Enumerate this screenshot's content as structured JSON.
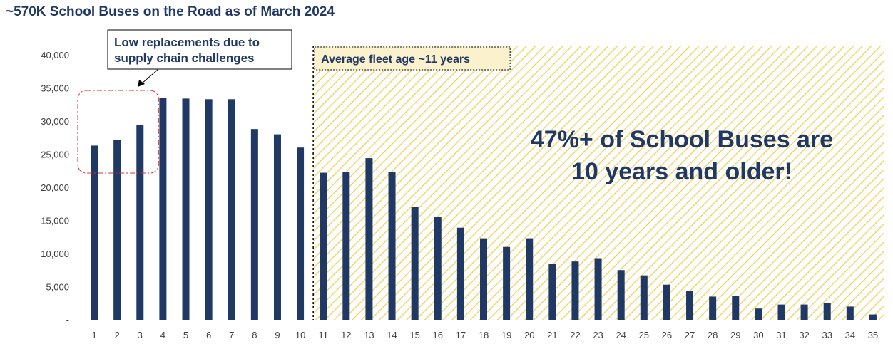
{
  "page": {
    "title": "~570K School Buses on the Road as of March 2024"
  },
  "annotations": {
    "low_replacements_line1": "Low replacements due to",
    "low_replacements_line2": "supply chain challenges",
    "average_fleet_age": "Average fleet age ~11 years",
    "big_callout_line1": "47%+ of School Buses are",
    "big_callout_line2": "10 years and older!"
  },
  "colors": {
    "bar": "#1f3864",
    "hatch": "#f3d66a",
    "highlight_border": "#e03030",
    "title": "#1f3864"
  },
  "chart_data": {
    "type": "bar",
    "title": "~570K School Buses on the Road as of March 2024",
    "xlabel": "",
    "ylabel": "",
    "ylim": [
      0,
      40000
    ],
    "yticks": [
      0,
      5000,
      10000,
      15000,
      20000,
      25000,
      30000,
      35000,
      40000
    ],
    "ytick_labels": [
      "-",
      "5,000",
      "10,000",
      "15,000",
      "20,000",
      "25,000",
      "30,000",
      "35,000",
      "40,000"
    ],
    "categories": [
      "1",
      "2",
      "3",
      "4",
      "5",
      "6",
      "7",
      "8",
      "9",
      "10",
      "11",
      "12",
      "13",
      "14",
      "15",
      "16",
      "17",
      "18",
      "19",
      "20",
      "21",
      "22",
      "23",
      "24",
      "25",
      "26",
      "27",
      "28",
      "29",
      "30",
      "31",
      "32",
      "33",
      "34",
      "35"
    ],
    "values": [
      26300,
      27100,
      29400,
      33500,
      33400,
      33300,
      33300,
      28800,
      28000,
      26000,
      22200,
      22300,
      24400,
      22300,
      17000,
      15500,
      13900,
      12300,
      11000,
      12300,
      8400,
      8800,
      9300,
      7500,
      6700,
      5300,
      4300,
      3500,
      3600,
      1700,
      2300,
      2300,
      2500,
      2000,
      800
    ],
    "grid": false,
    "legend": "none",
    "highlight_categories": [
      "1",
      "2",
      "3"
    ],
    "shaded_from_category": "11"
  }
}
